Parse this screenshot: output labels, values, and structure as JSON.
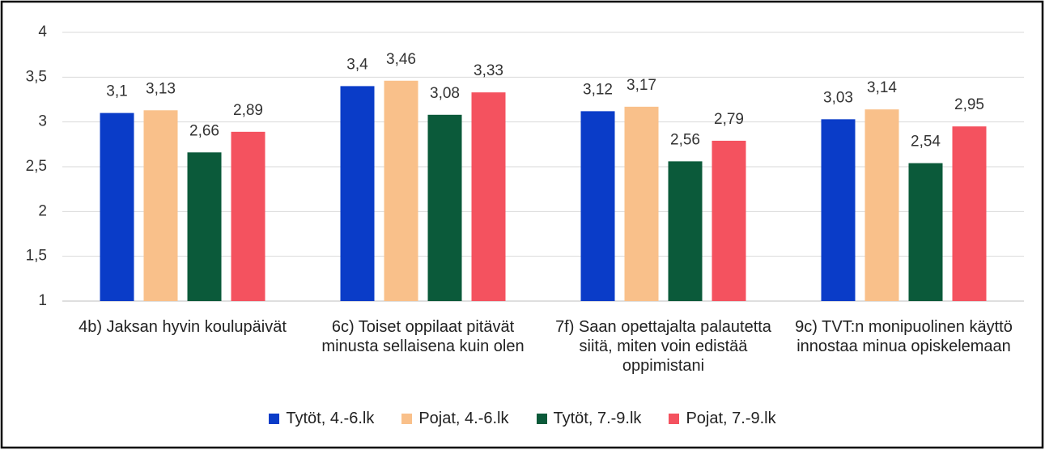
{
  "chart_data": {
    "type": "bar",
    "categories": [
      "4b) Jaksan hyvin koulupäivät",
      "6c) Toiset oppilaat pitävät minusta sellaisena kuin olen",
      "7f) Saan opettajalta palautetta siitä, miten voin edistää oppimistani",
      "9c) TVT:n monipuolinen käyttö innostaa minua opiskelemaan"
    ],
    "series": [
      {
        "name": "Tytöt, 4.-6.lk",
        "color": "#0a3cc8",
        "values": [
          3.1,
          3.4,
          3.12,
          3.03
        ],
        "value_labels": [
          "3,1",
          "3,4",
          "3,12",
          "3,03"
        ]
      },
      {
        "name": "Pojat, 4.-6.lk",
        "color": "#f9c08a",
        "values": [
          3.13,
          3.46,
          3.17,
          3.14
        ],
        "value_labels": [
          "3,13",
          "3,46",
          "3,17",
          "3,14"
        ]
      },
      {
        "name": "Tytöt, 7.-9.lk",
        "color": "#0b5a3a",
        "values": [
          2.66,
          3.08,
          2.56,
          2.54
        ],
        "value_labels": [
          "2,66",
          "3,08",
          "2,56",
          "2,54"
        ]
      },
      {
        "name": "Pojat, 7.-9.lk",
        "color": "#f4525f",
        "values": [
          2.89,
          3.33,
          2.79,
          2.95
        ],
        "value_labels": [
          "2,89",
          "3,33",
          "2,79",
          "2,95"
        ]
      }
    ],
    "ylim": [
      1,
      4
    ],
    "yticks": [
      1,
      {
        "value": 1.5,
        "label": "1,5"
      },
      2,
      {
        "value": 2.5,
        "label": "2,5"
      },
      3,
      {
        "value": 3.5,
        "label": "3,5"
      },
      4
    ],
    "grid": true,
    "legend": "bottom"
  }
}
